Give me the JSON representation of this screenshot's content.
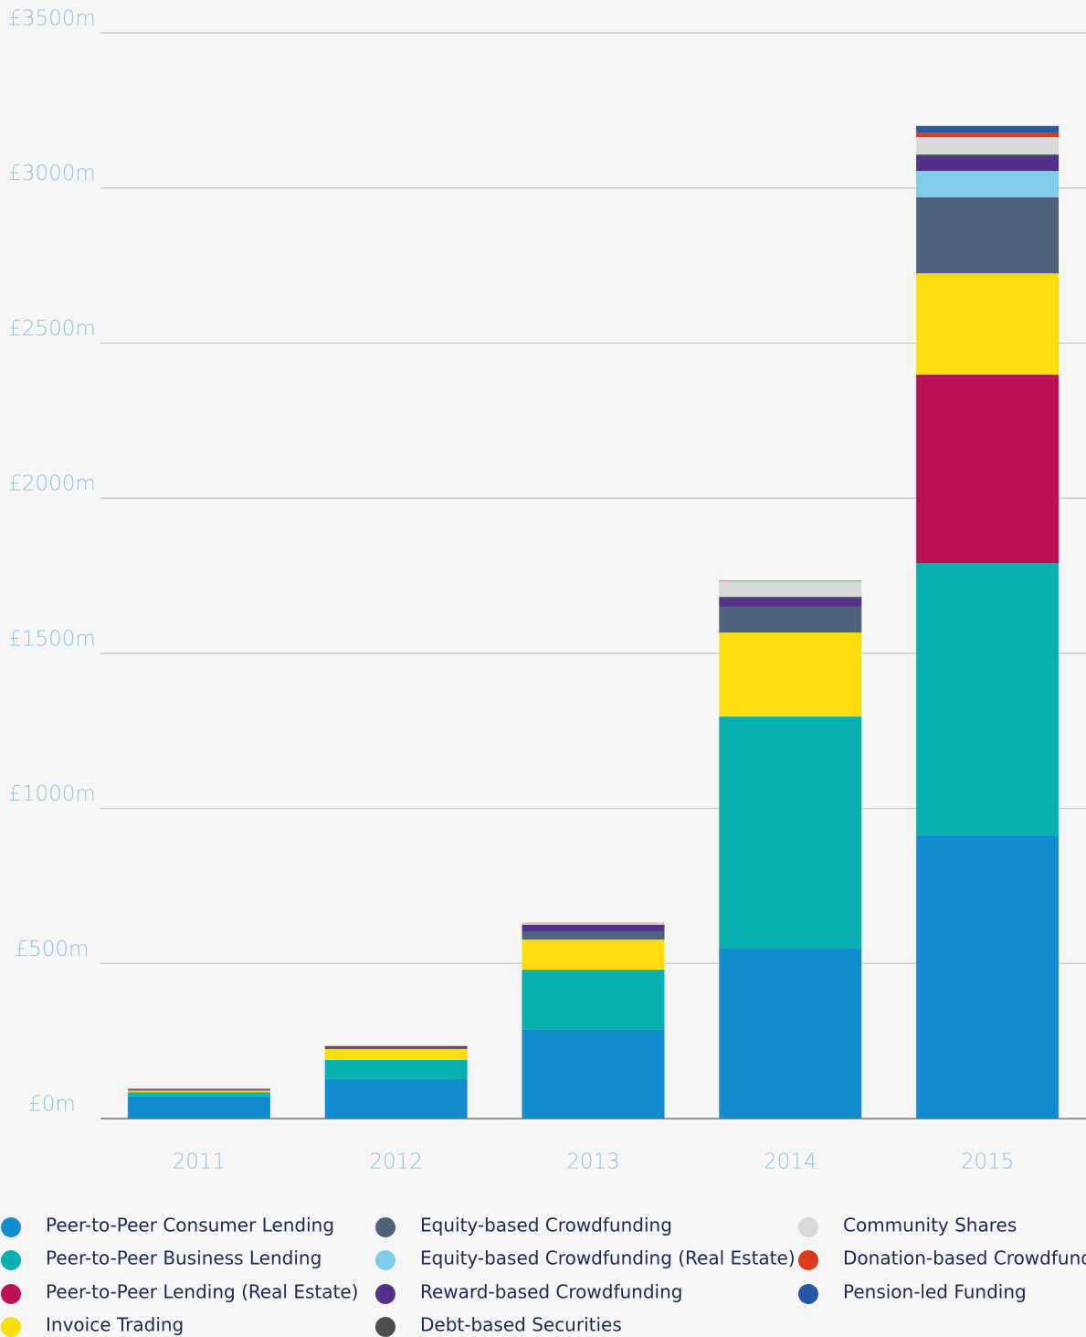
{
  "chart_data": {
    "type": "stacked_bar",
    "categories": [
      "2011",
      "2012",
      "2013",
      "2014",
      "2015"
    ],
    "series": [
      {
        "name": "Peer-to-Peer Consumer Lending",
        "color": "#138ccf",
        "values": [
          71,
          127,
          286,
          548,
          913
        ]
      },
      {
        "name": "Peer-to-Peer Business Lending",
        "color": "#08b1b0",
        "values": [
          14,
          62,
          194,
          748,
          878
        ]
      },
      {
        "name": "Peer-to-Peer Lending (Real Estate)",
        "color": "#bb1153",
        "values": [
          0,
          0,
          0,
          0,
          607
        ]
      },
      {
        "name": "Invoice Trading",
        "color": "#fddd0e",
        "values": [
          5,
          35,
          97,
          271,
          327
        ]
      },
      {
        "name": "Equity-based Crowdfunding",
        "color": "#4f627c",
        "values": [
          1,
          4,
          27,
          83,
          245
        ]
      },
      {
        "name": "Equity-based Crowdfunding (Real Estate)",
        "color": "#7fcde9",
        "values": [
          0,
          0,
          0,
          0,
          85
        ]
      },
      {
        "name": "Reward-based Crowdfunding",
        "color": "#53308a",
        "values": [
          3,
          5,
          21,
          29,
          50
        ]
      },
      {
        "name": "Debt-based Securities",
        "color": "#4e4e4e",
        "values": [
          0,
          0,
          0,
          3,
          3
        ]
      },
      {
        "name": "Community Shares",
        "color": "#d9d9d9",
        "values": [
          1,
          1,
          5,
          50,
          56
        ]
      },
      {
        "name": "Donation-based Crowdfunding",
        "color": "#e03a1e",
        "values": [
          2,
          1,
          1,
          2,
          15
        ]
      },
      {
        "name": "Pension-led Funding",
        "color": "#2859a6",
        "values": [
          0,
          0,
          0,
          0,
          21
        ]
      }
    ],
    "ylim": [
      0,
      3500
    ],
    "yticks": [
      {
        "value": 0,
        "label": "£0m"
      },
      {
        "value": 500,
        "label": "£500m"
      },
      {
        "value": 1000,
        "label": "£1000m"
      },
      {
        "value": 1500,
        "label": "£1500m"
      },
      {
        "value": 2000,
        "label": "£2000m"
      },
      {
        "value": 2500,
        "label": "£2500m"
      },
      {
        "value": 3000,
        "label": "£3000m"
      },
      {
        "value": 3500,
        "label": "£3500m"
      }
    ],
    "grid": true
  }
}
